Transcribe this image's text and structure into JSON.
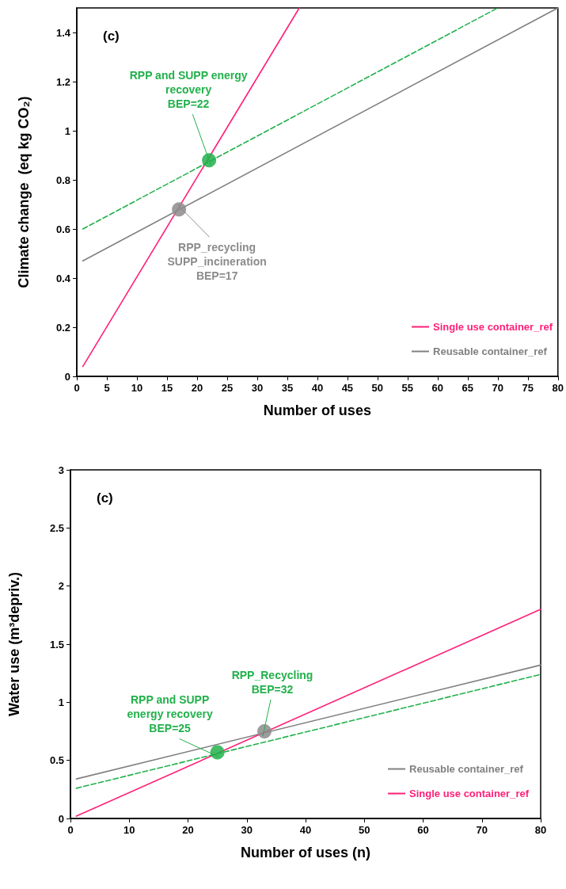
{
  "chart_data": [
    {
      "type": "line",
      "title": "(c)",
      "xlabel": "Number of uses",
      "ylabel": "Climate change  (eq kg CO₂)",
      "xlim": [
        0,
        80
      ],
      "xticks": [
        0,
        5,
        10,
        15,
        20,
        25,
        30,
        35,
        40,
        45,
        50,
        55,
        60,
        65,
        70,
        75,
        80
      ],
      "ylim": [
        0,
        1.5
      ],
      "yticks": [
        0,
        0.2,
        0.4,
        0.6,
        0.8,
        1,
        1.2,
        1.4
      ],
      "grid": false,
      "legend": "bottom right",
      "marker": "none",
      "series": [
        {
          "name": "Single use container_ref",
          "color": "#ff1f77",
          "x": [
            1,
            37
          ],
          "values": [
            0.04,
            1.5
          ]
        },
        {
          "name": "Reusable container_ref",
          "color": "#808080",
          "x": [
            1,
            80
          ],
          "values": [
            0.47,
            1.5
          ]
        },
        {
          "color": "#22b14c",
          "line_style": "dashed",
          "x": [
            1,
            70
          ],
          "values": [
            0.6,
            1.5
          ]
        },
        {
          "type": "scatter",
          "marker": "circle",
          "colors": [
            "#22b14c",
            "#8c8c8c"
          ],
          "x": [
            22,
            17
          ],
          "values": [
            0.88,
            0.68
          ]
        }
      ],
      "annotations": [
        {
          "text": "RPP and SUPP energy\nrecovery\nBEP=22",
          "x": 22,
          "y": 0.88
        },
        {
          "text": "RPP_recycling\nSUPP_incineration\nBEP=17",
          "x": 17,
          "y": 0.68
        }
      ]
    },
    {
      "type": "line",
      "title": "(c)",
      "xlabel": "Number of uses (n)",
      "ylabel": "Water use (m³depriv.)",
      "xlim": [
        0,
        80
      ],
      "xticks": [
        0,
        10,
        20,
        30,
        40,
        50,
        60,
        70,
        80
      ],
      "ylim": [
        0,
        3
      ],
      "yticks": [
        0,
        0.5,
        1,
        1.5,
        2,
        2.5,
        3
      ],
      "grid": false,
      "legend": "bottom right",
      "marker": "none",
      "series": [
        {
          "name": "Reusable container_ref",
          "color": "#808080",
          "x": [
            1,
            80
          ],
          "values": [
            0.34,
            1.32
          ]
        },
        {
          "name": "Single use container_ref",
          "color": "#ff1f77",
          "x": [
            1,
            80
          ],
          "values": [
            0.02,
            1.8
          ]
        },
        {
          "color": "#22b14c",
          "line_style": "dashed",
          "x": [
            1,
            80
          ],
          "values": [
            0.26,
            1.24
          ]
        },
        {
          "type": "scatter",
          "marker": "circle",
          "colors": [
            "#22b14c",
            "#8c8c8c"
          ],
          "x": [
            25,
            33
          ],
          "values": [
            0.57,
            0.75
          ]
        }
      ],
      "annotations": [
        {
          "text": "RPP and SUPP\nenergy recovery\nBEP=25",
          "x": 25,
          "y": 0.57
        },
        {
          "text": "RPP_Recycling\nBEP=32",
          "x": 33,
          "y": 0.75
        }
      ]
    }
  ]
}
